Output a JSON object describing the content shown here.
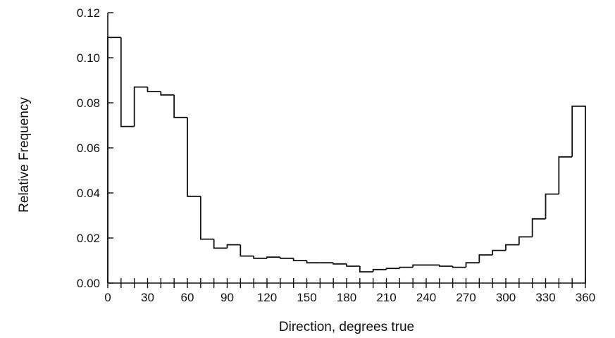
{
  "chart_data": {
    "type": "bar",
    "title": "",
    "xlabel": "Direction, degrees true",
    "ylabel": "Relative Frequency",
    "xlim": [
      0,
      360
    ],
    "ylim": [
      0,
      0.12
    ],
    "bin_width": 10,
    "bin_edges": [
      0,
      10,
      20,
      30,
      40,
      50,
      60,
      70,
      80,
      90,
      100,
      110,
      120,
      130,
      140,
      150,
      160,
      170,
      180,
      190,
      200,
      210,
      220,
      230,
      240,
      250,
      260,
      270,
      280,
      290,
      300,
      310,
      320,
      330,
      340,
      350,
      360
    ],
    "values": [
      0.109,
      0.0695,
      0.087,
      0.085,
      0.0835,
      0.0735,
      0.0385,
      0.0195,
      0.0155,
      0.017,
      0.012,
      0.011,
      0.0115,
      0.011,
      0.01,
      0.009,
      0.009,
      0.0085,
      0.0075,
      0.005,
      0.006,
      0.0065,
      0.007,
      0.008,
      0.008,
      0.0075,
      0.007,
      0.009,
      0.0125,
      0.0145,
      0.017,
      0.0205,
      0.0285,
      0.0395,
      0.056,
      0.0785
    ],
    "xticks": [
      "0",
      "30",
      "60",
      "90",
      "120",
      "150",
      "180",
      "210",
      "240",
      "270",
      "300",
      "330",
      "360"
    ],
    "yticks": [
      "0.00",
      "0.02",
      "0.04",
      "0.06",
      "0.08",
      "0.10",
      "0.12"
    ],
    "grid": false,
    "colors": {
      "line": "#111111",
      "background": "#ffffff"
    }
  }
}
